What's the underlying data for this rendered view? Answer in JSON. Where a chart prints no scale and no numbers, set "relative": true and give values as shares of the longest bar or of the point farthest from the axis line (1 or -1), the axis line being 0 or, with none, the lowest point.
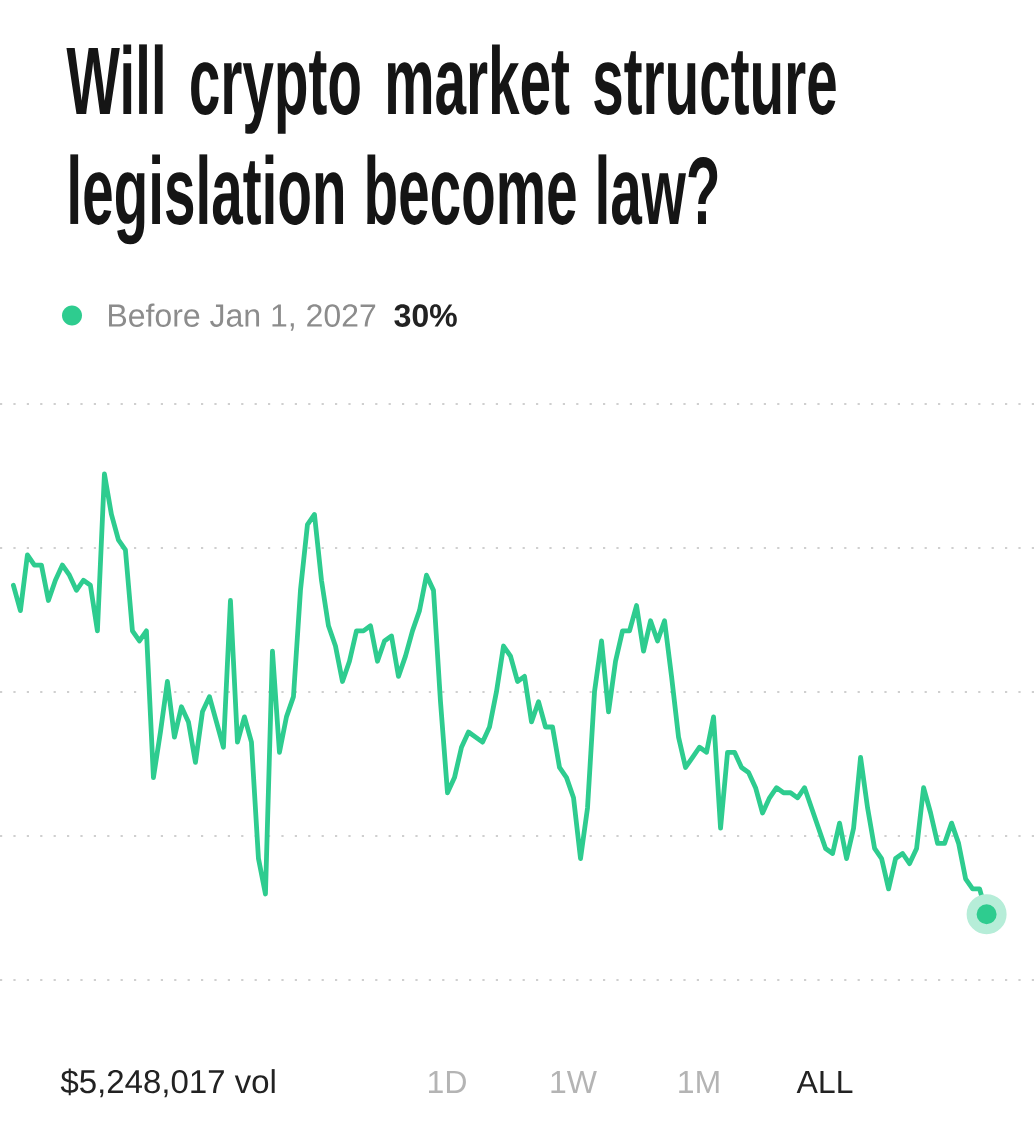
{
  "chart_data": {
    "type": "line",
    "title": "Will crypto market structure legislation become law?",
    "relative": true,
    "grid": true,
    "legend": "top left",
    "categories": [
      null,
      null,
      null,
      null,
      null,
      null,
      null,
      null,
      null,
      null,
      null,
      null,
      null,
      null,
      null,
      null,
      null,
      null,
      null,
      null,
      null,
      null,
      null,
      null,
      null,
      null,
      null,
      null,
      null,
      null,
      null,
      null,
      null,
      null,
      null,
      null,
      null,
      null,
      null,
      null,
      null,
      null,
      null,
      null,
      null,
      null,
      null,
      null,
      null,
      null,
      null,
      null,
      null,
      null,
      null,
      null,
      null,
      null,
      null,
      null,
      null,
      null,
      null,
      null,
      null,
      null,
      null,
      null,
      null,
      null,
      null,
      null,
      null,
      null,
      null,
      null,
      null,
      null,
      null,
      null,
      null,
      null,
      null,
      null,
      null,
      null,
      null,
      null,
      null,
      null,
      null,
      null,
      null,
      null,
      null,
      null,
      null,
      null,
      null,
      null,
      null,
      null,
      null,
      null,
      null,
      null,
      null,
      null,
      null,
      null,
      null,
      null,
      null,
      null,
      null,
      null,
      null,
      null,
      null,
      null,
      null,
      null,
      null,
      null,
      null,
      null,
      null,
      null,
      null,
      null,
      null,
      null,
      null,
      null,
      null,
      null,
      null,
      null,
      null,
      null
    ],
    "series": [
      {
        "name": "Before Jan 1, 2027",
        "color": "#2ecc8f",
        "values": [
          0.78,
          0.73,
          0.84,
          0.82,
          0.82,
          0.75,
          0.79,
          0.82,
          0.8,
          0.77,
          0.79,
          0.78,
          0.69,
          1.0,
          0.92,
          0.87,
          0.85,
          0.69,
          0.67,
          0.69,
          0.4,
          0.49,
          0.59,
          0.48,
          0.54,
          0.51,
          0.43,
          0.53,
          0.56,
          0.51,
          0.46,
          0.75,
          0.47,
          0.52,
          0.47,
          0.24,
          0.17,
          0.65,
          0.45,
          0.52,
          0.56,
          0.77,
          0.9,
          0.92,
          0.79,
          0.7,
          0.66,
          0.59,
          0.63,
          0.69,
          0.69,
          0.7,
          0.63,
          0.67,
          0.68,
          0.6,
          0.64,
          0.69,
          0.73,
          0.8,
          0.77,
          0.55,
          0.37,
          0.4,
          0.46,
          0.49,
          0.48,
          0.47,
          0.5,
          0.57,
          0.66,
          0.64,
          0.59,
          0.6,
          0.51,
          0.55,
          0.5,
          0.5,
          0.42,
          0.4,
          0.36,
          0.24,
          0.34,
          0.57,
          0.67,
          0.53,
          0.63,
          0.69,
          0.69,
          0.74,
          0.65,
          0.71,
          0.67,
          0.71,
          0.6,
          0.48,
          0.42,
          0.44,
          0.46,
          0.45,
          0.52,
          0.3,
          0.45,
          0.45,
          0.42,
          0.41,
          0.38,
          0.33,
          0.36,
          0.38,
          0.37,
          0.37,
          0.36,
          0.38,
          0.34,
          0.3,
          0.26,
          0.25,
          0.31,
          0.24,
          0.3,
          0.44,
          0.34,
          0.26,
          0.24,
          0.18,
          0.24,
          0.25,
          0.23,
          0.26,
          0.38,
          0.33,
          0.27,
          0.27,
          0.31,
          0.27,
          0.2,
          0.18,
          0.18,
          0.13
        ]
      }
    ],
    "annotations": [
      "30%",
      "$5,248,017 vol",
      "1D",
      "1W",
      "1M",
      "ALL"
    ]
  }
}
